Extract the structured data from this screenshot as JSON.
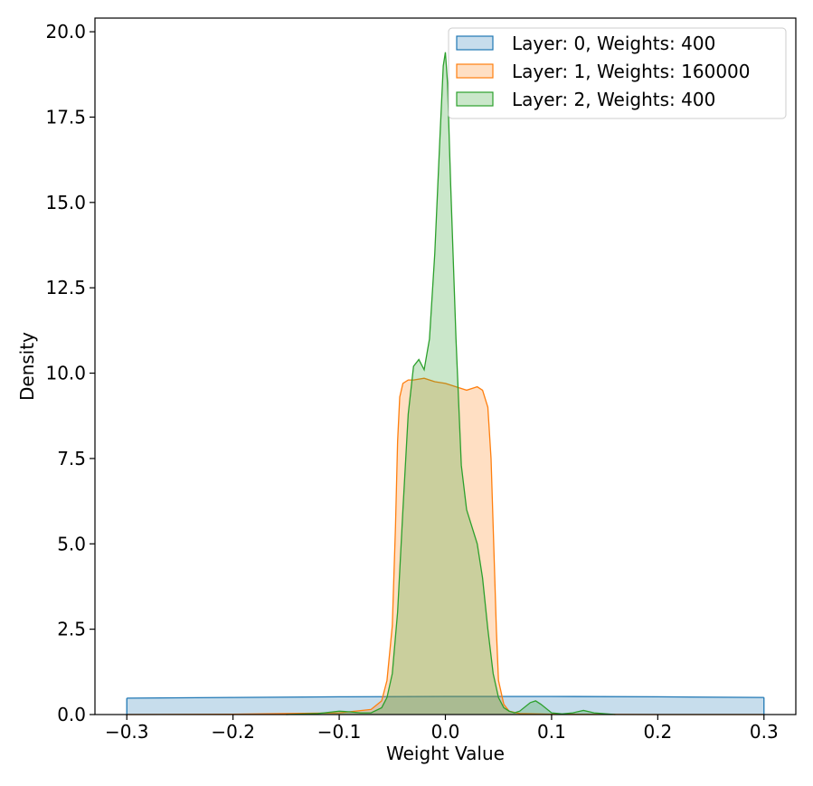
{
  "chart_data": {
    "type": "area",
    "title": "",
    "xlabel": "Weight Value",
    "ylabel": "Density",
    "xlim": [
      -0.33,
      0.33
    ],
    "ylim": [
      0,
      20.4
    ],
    "xticks": [
      -0.3,
      -0.2,
      -0.1,
      0.0,
      0.1,
      0.2,
      0.3
    ],
    "xtick_labels": [
      "−0.3",
      "−0.2",
      "−0.1",
      "0.0",
      "0.1",
      "0.2",
      "0.3"
    ],
    "yticks": [
      0.0,
      2.5,
      5.0,
      7.5,
      10.0,
      12.5,
      15.0,
      17.5,
      20.0
    ],
    "ytick_labels": [
      "0.0",
      "2.5",
      "5.0",
      "7.5",
      "10.0",
      "12.5",
      "15.0",
      "17.5",
      "20.0"
    ],
    "grid": false,
    "legend_position": "top-right",
    "series": [
      {
        "name": "Layer: 0, Weights: 400",
        "line_color": "#1f77b4",
        "fill_color": "#1f77b4",
        "fill_opacity": 0.25,
        "x": [
          -0.3,
          -0.2,
          -0.1,
          0.0,
          0.1,
          0.2,
          0.3
        ],
        "y": [
          0.48,
          0.5,
          0.52,
          0.53,
          0.53,
          0.52,
          0.5
        ]
      },
      {
        "name": "Layer: 1, Weights: 160000",
        "line_color": "#ff7f0e",
        "fill_color": "#ff7f0e",
        "fill_opacity": 0.25,
        "x": [
          -0.3,
          -0.2,
          -0.1,
          -0.07,
          -0.06,
          -0.055,
          -0.05,
          -0.047,
          -0.045,
          -0.043,
          -0.04,
          -0.035,
          -0.03,
          -0.02,
          -0.01,
          0.0,
          0.01,
          0.02,
          0.03,
          0.035,
          0.04,
          0.043,
          0.045,
          0.048,
          0.05,
          0.055,
          0.06,
          0.07,
          0.1,
          0.2,
          0.3
        ],
        "y": [
          0.0,
          0.01,
          0.05,
          0.15,
          0.4,
          1.0,
          2.6,
          5.5,
          8.0,
          9.3,
          9.7,
          9.8,
          9.8,
          9.85,
          9.75,
          9.7,
          9.6,
          9.5,
          9.6,
          9.5,
          9.0,
          7.5,
          5.5,
          2.5,
          1.0,
          0.3,
          0.1,
          0.03,
          0.01,
          0.0,
          0.0
        ]
      },
      {
        "name": "Layer: 2, Weights: 400",
        "line_color": "#2ca02c",
        "fill_color": "#2ca02c",
        "fill_opacity": 0.25,
        "x": [
          -0.15,
          -0.12,
          -0.1,
          -0.09,
          -0.08,
          -0.07,
          -0.06,
          -0.055,
          -0.05,
          -0.045,
          -0.04,
          -0.035,
          -0.03,
          -0.025,
          -0.02,
          -0.015,
          -0.01,
          -0.005,
          -0.002,
          0.0,
          0.002,
          0.005,
          0.01,
          0.015,
          0.02,
          0.025,
          0.03,
          0.035,
          0.04,
          0.045,
          0.05,
          0.055,
          0.06,
          0.065,
          0.07,
          0.08,
          0.085,
          0.09,
          0.1,
          0.11,
          0.12,
          0.13,
          0.14,
          0.16
        ],
        "y": [
          0.0,
          0.03,
          0.1,
          0.08,
          0.05,
          0.05,
          0.2,
          0.5,
          1.2,
          3.0,
          6.0,
          8.8,
          10.2,
          10.4,
          10.1,
          11.0,
          13.5,
          17.0,
          19.0,
          19.4,
          18.5,
          15.5,
          11.0,
          7.3,
          6.0,
          5.5,
          5.0,
          4.0,
          2.5,
          1.2,
          0.5,
          0.2,
          0.1,
          0.05,
          0.1,
          0.35,
          0.4,
          0.3,
          0.05,
          0.02,
          0.05,
          0.12,
          0.05,
          0.0
        ]
      }
    ]
  }
}
